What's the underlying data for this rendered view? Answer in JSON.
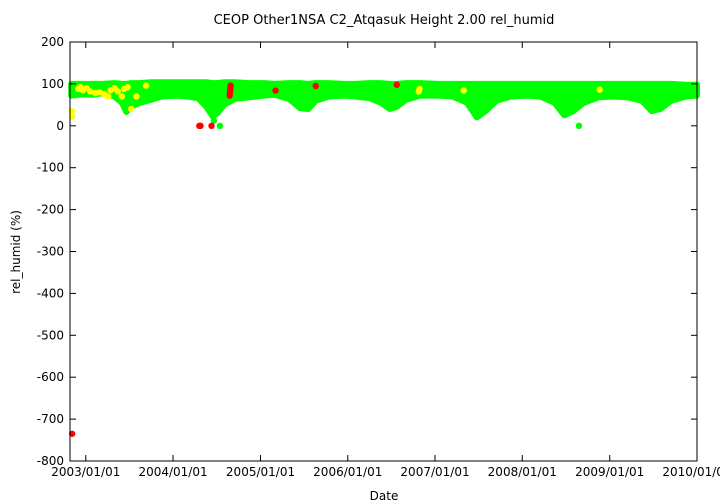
{
  "chart_data": {
    "type": "scatter",
    "title": "CEOP Other1NSA C2_Atqasuk Height 2.00 rel_humid",
    "xlabel": "Date",
    "ylabel": "rel_humid (%)",
    "xlim": [
      "2002/10/27",
      "2010/01/01"
    ],
    "ylim": [
      -800,
      200
    ],
    "x_ticks": [
      "2003/01/01",
      "2004/01/01",
      "2005/01/01",
      "2006/01/01",
      "2007/01/01",
      "2008/01/01",
      "2009/01/01",
      "2010/01/01"
    ],
    "y_ticks": [
      200,
      100,
      0,
      -100,
      -200,
      -300,
      -400,
      -500,
      -600,
      -700,
      -800
    ],
    "grid": false,
    "legend": "none",
    "colors": {
      "main": "#00ff00",
      "flag_yellow": "#ffff00",
      "flag_red": "#ff0000"
    },
    "series": [
      {
        "color": "#00ff00",
        "kind": "band",
        "points": [
          [
            "2002/11/01",
            72,
            100
          ],
          [
            "2002/12/15",
            75,
            100
          ],
          [
            "2003/02/01",
            74,
            100
          ],
          [
            "2003/03/15",
            78,
            100
          ],
          [
            "2003/05/01",
            70,
            102
          ],
          [
            "2003/06/01",
            55,
            100
          ],
          [
            "2003/06/20",
            33,
            100
          ],
          [
            "2003/07/10",
            45,
            102
          ],
          [
            "2003/08/15",
            55,
            102
          ],
          [
            "2003/10/01",
            62,
            104
          ],
          [
            "2003/11/15",
            70,
            104
          ],
          [
            "2004/01/15",
            72,
            104
          ],
          [
            "2004/03/01",
            70,
            104
          ],
          [
            "2004/04/15",
            66,
            104
          ],
          [
            "2004/05/20",
            45,
            104
          ],
          [
            "2004/06/15",
            22,
            102
          ],
          [
            "2004/07/05",
            30,
            102
          ],
          [
            "2004/08/01",
            50,
            104
          ],
          [
            "2004/09/15",
            64,
            104
          ],
          [
            "2004/11/15",
            68,
            102
          ],
          [
            "2005/01/15",
            72,
            102
          ],
          [
            "2005/03/01",
            74,
            100
          ],
          [
            "2005/05/01",
            64,
            102
          ],
          [
            "2005/06/15",
            42,
            102
          ],
          [
            "2005/07/20",
            40,
            100
          ],
          [
            "2005/08/20",
            60,
            102
          ],
          [
            "2005/10/15",
            70,
            102
          ],
          [
            "2005/12/15",
            72,
            100
          ],
          [
            "2006/02/01",
            70,
            100
          ],
          [
            "2006/04/01",
            66,
            102
          ],
          [
            "2006/05/20",
            55,
            102
          ],
          [
            "2006/06/25",
            40,
            100
          ],
          [
            "2006/07/25",
            45,
            100
          ],
          [
            "2006/09/01",
            62,
            102
          ],
          [
            "2006/11/01",
            72,
            102
          ],
          [
            "2007/01/15",
            72,
            100
          ],
          [
            "2007/03/15",
            70,
            100
          ],
          [
            "2007/05/15",
            55,
            100
          ],
          [
            "2007/06/25",
            20,
            100
          ],
          [
            "2007/08/01",
            35,
            100
          ],
          [
            "2007/09/15",
            60,
            100
          ],
          [
            "2007/11/15",
            70,
            100
          ],
          [
            "2008/01/15",
            72,
            100
          ],
          [
            "2008/03/15",
            70,
            100
          ],
          [
            "2008/05/15",
            55,
            100
          ],
          [
            "2008/06/25",
            25,
            100
          ],
          [
            "2008/08/01",
            35,
            100
          ],
          [
            "2008/09/15",
            55,
            100
          ],
          [
            "2008/11/15",
            68,
            100
          ],
          [
            "2009/01/15",
            70,
            100
          ],
          [
            "2009/03/15",
            68,
            100
          ],
          [
            "2009/05/15",
            60,
            100
          ],
          [
            "2009/06/25",
            35,
            100
          ],
          [
            "2009/08/01",
            40,
            100
          ],
          [
            "2009/09/15",
            60,
            100
          ],
          [
            "2009/11/15",
            70,
            98
          ],
          [
            "2010/01/01",
            72,
            98
          ]
        ],
        "extra_points": [
          [
            "2004/06/20",
            12
          ],
          [
            "2004/07/15",
            0
          ],
          [
            "2008/08/25",
            0
          ]
        ]
      },
      {
        "color": "#ffff00",
        "kind": "points",
        "points": [
          [
            "2002/11/03",
            35
          ],
          [
            "2002/11/05",
            22
          ],
          [
            "2002/12/01",
            88
          ],
          [
            "2002/12/10",
            92
          ],
          [
            "2002/12/20",
            85
          ],
          [
            "2003/01/05",
            90
          ],
          [
            "2003/01/20",
            82
          ],
          [
            "2003/02/10",
            78
          ],
          [
            "2003/03/01",
            80
          ],
          [
            "2003/03/20",
            75
          ],
          [
            "2003/04/05",
            70
          ],
          [
            "2003/04/15",
            85
          ],
          [
            "2003/05/01",
            90
          ],
          [
            "2003/05/15",
            82
          ],
          [
            "2003/06/01",
            70
          ],
          [
            "2003/06/10",
            88
          ],
          [
            "2003/06/25",
            92
          ],
          [
            "2003/07/10",
            40
          ],
          [
            "2003/08/01",
            70
          ],
          [
            "2003/09/10",
            96
          ],
          [
            "2006/10/25",
            82
          ],
          [
            "2006/10/28",
            88
          ],
          [
            "2007/05/01",
            84
          ],
          [
            "2008/11/20",
            86
          ]
        ]
      },
      {
        "color": "#ff0000",
        "kind": "points",
        "points": [
          [
            "2002/11/05",
            -735
          ],
          [
            "2004/04/20",
            0
          ],
          [
            "2004/04/25",
            0
          ],
          [
            "2004/06/10",
            0
          ],
          [
            "2004/08/25",
            72
          ],
          [
            "2004/08/26",
            78
          ],
          [
            "2004/08/27",
            84
          ],
          [
            "2004/08/28",
            90
          ],
          [
            "2004/08/29",
            96
          ],
          [
            "2005/03/05",
            84
          ],
          [
            "2005/08/20",
            95
          ],
          [
            "2006/07/25",
            98
          ]
        ]
      }
    ]
  }
}
